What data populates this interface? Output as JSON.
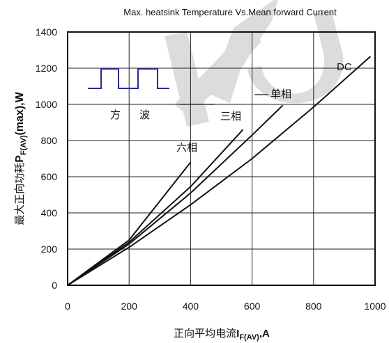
{
  "chart_data": {
    "type": "line",
    "title": "Max. heatsink Temperature Vs.Mean forward Current",
    "xlabel": {
      "prefix": "正向平均电流",
      "symbol": "I",
      "subscript": "F(AV)",
      "suffix": ",A"
    },
    "ylabel": {
      "prefix": "最大正向功耗",
      "symbol": "P",
      "subscript": "F(AV)",
      "suffix": "(max),W"
    },
    "xlim": [
      0,
      1000
    ],
    "ylim": [
      0,
      1400
    ],
    "xticks": [
      0,
      200,
      400,
      600,
      800,
      1000
    ],
    "yticks": [
      0,
      200,
      400,
      600,
      800,
      1000,
      1200,
      1400
    ],
    "grid": true,
    "series": [
      {
        "name": "DC",
        "x": [
          0,
          200,
          400,
          600,
          800,
          985
        ],
        "y": [
          0,
          210,
          445,
          700,
          985,
          1265
        ]
      },
      {
        "name": "单相",
        "x": [
          0,
          200,
          400,
          600,
          700
        ],
        "y": [
          0,
          228,
          510,
          830,
          995
        ]
      },
      {
        "name": "三相",
        "x": [
          0,
          200,
          400,
          570
        ],
        "y": [
          0,
          238,
          545,
          860
        ]
      },
      {
        "name": "六相",
        "x": [
          0,
          200,
          400
        ],
        "y": [
          0,
          250,
          680
        ]
      }
    ],
    "inset_caption": [
      "方",
      "波"
    ],
    "line_color": "#111111",
    "inset_color": "#2a2a8c",
    "watermark_color": "#d6d6d6"
  }
}
